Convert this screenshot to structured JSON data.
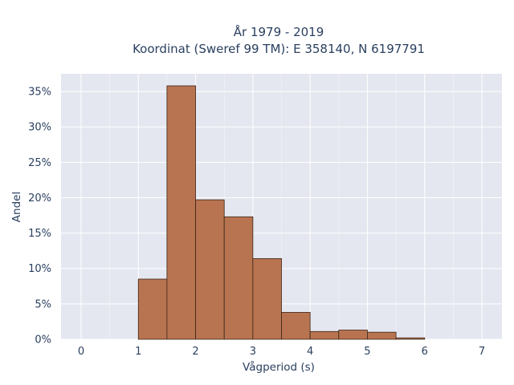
{
  "chart_data": {
    "type": "bar",
    "title_lines": [
      "År 1979 - 2019",
      "Koordinat (Sweref 99 TM): E 358140, N 6197791"
    ],
    "xlabel": "Vågperiod (s)",
    "ylabel": "Andel",
    "xlim": [
      -0.35,
      7.35
    ],
    "ylim": [
      0,
      37.5
    ],
    "x_ticks": [
      {
        "value": 0,
        "label": "0"
      },
      {
        "value": 1,
        "label": "1"
      },
      {
        "value": 2,
        "label": "2"
      },
      {
        "value": 3,
        "label": "3"
      },
      {
        "value": 4,
        "label": "4"
      },
      {
        "value": 5,
        "label": "5"
      },
      {
        "value": 6,
        "label": "6"
      },
      {
        "value": 7,
        "label": "7"
      }
    ],
    "y_ticks": [
      {
        "value": 0,
        "label": "0%"
      },
      {
        "value": 5,
        "label": "5%"
      },
      {
        "value": 10,
        "label": "10%"
      },
      {
        "value": 15,
        "label": "15%"
      },
      {
        "value": 20,
        "label": "20%"
      },
      {
        "value": 25,
        "label": "25%"
      },
      {
        "value": 30,
        "label": "30%"
      },
      {
        "value": 35,
        "label": "35%"
      }
    ],
    "bins": [
      {
        "x0": 1.0,
        "x1": 1.5,
        "value": 8.5
      },
      {
        "x0": 1.5,
        "x1": 2.0,
        "value": 35.8
      },
      {
        "x0": 2.0,
        "x1": 2.5,
        "value": 19.7
      },
      {
        "x0": 2.5,
        "x1": 3.0,
        "value": 17.3
      },
      {
        "x0": 3.0,
        "x1": 3.5,
        "value": 11.4
      },
      {
        "x0": 3.5,
        "x1": 4.0,
        "value": 3.8
      },
      {
        "x0": 4.0,
        "x1": 4.5,
        "value": 1.1
      },
      {
        "x0": 4.5,
        "x1": 5.0,
        "value": 1.3
      },
      {
        "x0": 5.0,
        "x1": 5.5,
        "value": 1.0
      },
      {
        "x0": 5.5,
        "x1": 6.0,
        "value": 0.2
      }
    ],
    "colors": {
      "bar_fill": "#b87450",
      "bar_edge": "#3b2416",
      "plot_bg": "#e5e7f0",
      "grid": "#ffffff"
    },
    "grid": true,
    "legend": "none"
  }
}
